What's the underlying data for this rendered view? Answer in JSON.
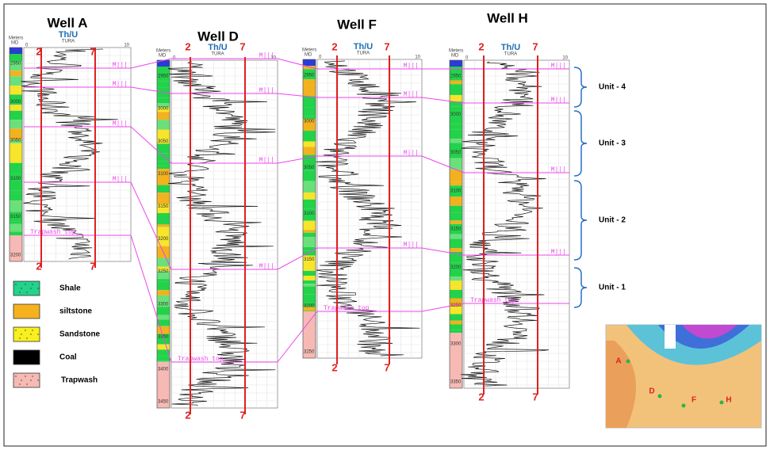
{
  "wells": [
    {
      "name": "Well A",
      "curve": "Th/U",
      "mnemonic": "TURA",
      "depth_header": [
        "Meters",
        "MD"
      ],
      "scale": [
        "0",
        "10"
      ],
      "cutoffs": [
        "2",
        "7"
      ],
      "depths": [
        "2950",
        "3000",
        "3050",
        "3100",
        "3150",
        "3200"
      ],
      "markers": [
        "M|||",
        "M|||",
        "M|||",
        "M|||",
        "Trapwash top"
      ]
    },
    {
      "name": "Well D",
      "curve": "Th/U",
      "mnemonic": "TURA",
      "depth_header": [
        "Meters",
        "MD"
      ],
      "scale": [
        "0",
        "10"
      ],
      "cutoffs": [
        "2",
        "7"
      ],
      "depths": [
        "2950",
        "3000",
        "3050",
        "3100",
        "3150",
        "3200",
        "3250",
        "3300",
        "3350",
        "3400",
        "3450"
      ],
      "markers": [
        "M|||",
        "M|||",
        "M|||",
        "M|||",
        "Trapwash top"
      ]
    },
    {
      "name": "Well F",
      "curve": "Th/U",
      "mnemonic": "TURA",
      "depth_header": [
        "Meters",
        "MD"
      ],
      "scale": [
        "0",
        "10"
      ],
      "cutoffs": [
        "2",
        "7"
      ],
      "depths": [
        "2950",
        "3000",
        "3050",
        "3100",
        "3150",
        "3200",
        "3250"
      ],
      "markers": [
        "M|||",
        "M|||",
        "M|||",
        "M|||",
        "Trapwash top"
      ]
    },
    {
      "name": "Well H",
      "curve": "Th/U",
      "mnemonic": "TURA",
      "depth_header": [
        "Meters",
        "MD"
      ],
      "scale": [
        "0",
        "10"
      ],
      "cutoffs": [
        "2",
        "7"
      ],
      "depths": [
        "2950",
        "3000",
        "3050",
        "3100",
        "3150",
        "3200",
        "3250",
        "3300",
        "3350"
      ],
      "markers": [
        "M|||",
        "M|||",
        "M|||",
        "M|||",
        "Trapwash top"
      ]
    }
  ],
  "units": [
    "Unit - 4",
    "Unit - 3",
    "Unit - 2",
    "Unit - 1"
  ],
  "legend": [
    "Shale",
    "siltstone",
    "Sandstone",
    "Coal",
    "Trapwash"
  ],
  "map_labels": [
    "A",
    "D",
    "F",
    "H"
  ]
}
